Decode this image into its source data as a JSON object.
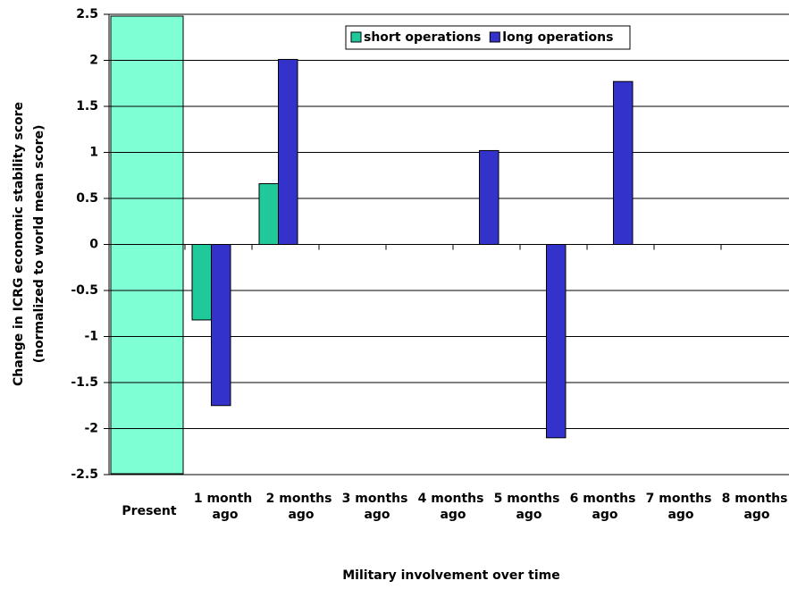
{
  "chart_data": {
    "type": "bar",
    "categories": [
      "Present",
      "1 month\nago",
      "2 months\nago",
      "3 months\nago",
      "4 months\nago",
      "5 months\nago",
      "6 months\nago",
      "7 months\nago",
      "8 months\nago"
    ],
    "series": [
      {
        "name": "short operations",
        "color": "#1fc99a",
        "values": [
          null,
          -0.82,
          0.66,
          null,
          null,
          null,
          null,
          null,
          null
        ]
      },
      {
        "name": "long operations",
        "color": "#3333cc",
        "values": [
          null,
          -1.75,
          2.01,
          null,
          null,
          1.02,
          -2.1,
          1.77,
          null
        ]
      }
    ],
    "highlight_index": 0,
    "highlight_color": "#7fffd4",
    "ylim": [
      -2.5,
      2.5
    ],
    "yticks": [
      2.5,
      2,
      1.5,
      1,
      0.5,
      0,
      -0.5,
      -1,
      -1.5,
      -2,
      -2.5
    ],
    "grid": true,
    "x_label": "Military involvement over time",
    "y_label": [
      "Change in ICRG economic stability score",
      "(normalized to world mean score)"
    ],
    "legend": "top"
  }
}
